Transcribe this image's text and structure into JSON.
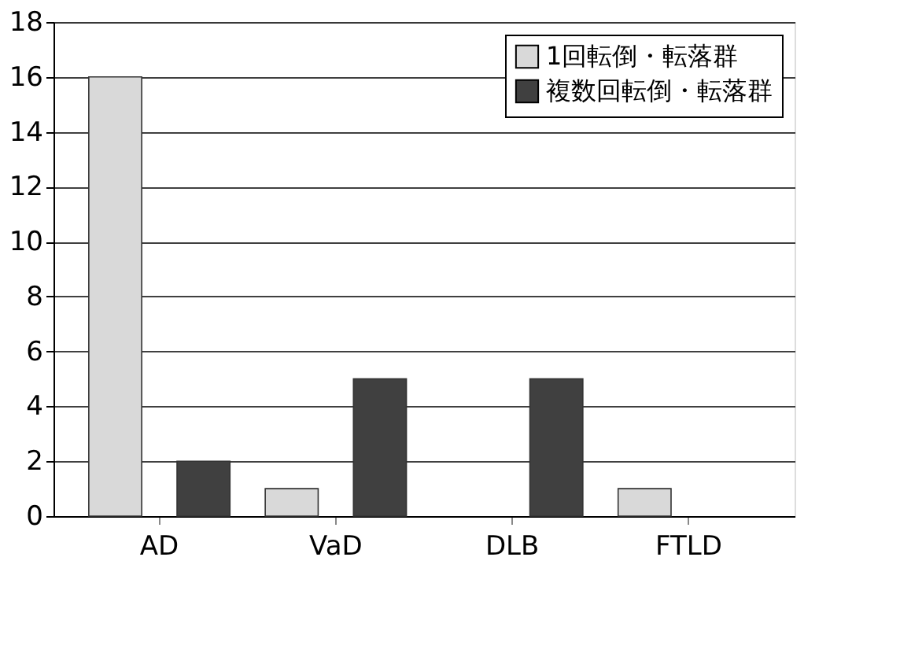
{
  "chart_data": {
    "type": "bar",
    "categories": [
      "AD",
      "VaD",
      "DLB",
      "FTLD"
    ],
    "series": [
      {
        "name": "1回転倒・転落群",
        "color": "#d9d9d9",
        "values": [
          16,
          1,
          null,
          1
        ]
      },
      {
        "name": "複数回転倒・転落群",
        "color": "#404040",
        "values": [
          2,
          5,
          5,
          null
        ]
      }
    ],
    "ylim": [
      0,
      18
    ],
    "yticks": [
      0,
      2,
      4,
      6,
      8,
      10,
      12,
      14,
      16,
      18
    ],
    "grid": "y",
    "legend": "top right"
  }
}
